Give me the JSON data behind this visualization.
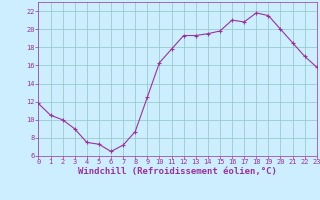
{
  "x": [
    0,
    1,
    2,
    3,
    4,
    5,
    6,
    7,
    8,
    9,
    10,
    11,
    12,
    13,
    14,
    15,
    16,
    17,
    18,
    19,
    20,
    21,
    22,
    23
  ],
  "y": [
    11.8,
    10.5,
    10.0,
    9.0,
    7.5,
    7.3,
    6.5,
    7.2,
    8.7,
    12.5,
    16.3,
    17.8,
    19.3,
    19.3,
    19.5,
    19.8,
    21.0,
    20.8,
    21.8,
    21.5,
    20.0,
    18.5,
    17.0,
    15.8
  ],
  "line_color": "#993399",
  "marker": "+",
  "marker_size": 3,
  "marker_linewidth": 0.8,
  "bg_color": "#cceeff",
  "grid_color": "#99cccc",
  "xlabel": "Windchill (Refroidissement éolien,°C)",
  "xlabel_color": "#993399",
  "ylim": [
    6,
    23
  ],
  "xlim": [
    0,
    23
  ],
  "yticks": [
    6,
    8,
    10,
    12,
    14,
    16,
    18,
    20,
    22
  ],
  "xticks": [
    0,
    1,
    2,
    3,
    4,
    5,
    6,
    7,
    8,
    9,
    10,
    11,
    12,
    13,
    14,
    15,
    16,
    17,
    18,
    19,
    20,
    21,
    22,
    23
  ],
  "tick_color": "#993399",
  "tick_fontsize": 5.0,
  "xlabel_fontsize": 6.5,
  "linewidth": 0.8
}
